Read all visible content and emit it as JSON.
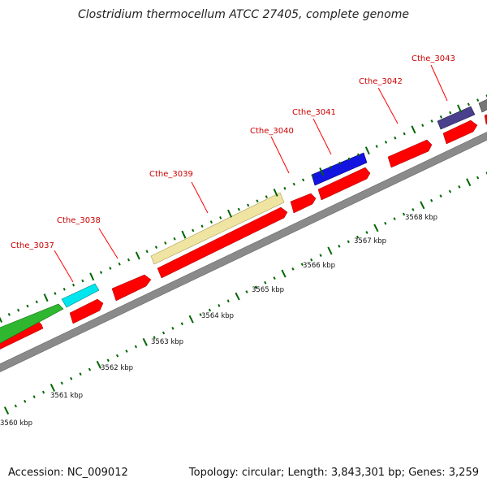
{
  "title": "Clostridium thermocellum ATCC 27405, complete genome",
  "footer": {
    "accession": "Accession: NC_009012",
    "topology": "Topology: circular;",
    "length": "Length: 3,843,301 bp;",
    "genes": "Genes: 3,259"
  },
  "colors": {
    "cds": "#ff0000",
    "backbone": "#888888",
    "tick": "#006600",
    "label": "#cc0000"
  },
  "kbp_labels": [
    "3560 kbp",
    "3561 kbp",
    "3562 kbp",
    "3563 kbp",
    "3564 kbp",
    "3565 kbp",
    "3566 kbp",
    "3567 kbp",
    "3568 kbp"
  ],
  "gene_labels": [
    "Cthe_3037",
    "Cthe_3038",
    "Cthe_3039",
    "Cthe_3040",
    "Cthe_3041",
    "Cthe_3042",
    "Cthe_3043"
  ],
  "feature_colors": [
    "#2db52d",
    "#00e5ee",
    "#f0e3a0",
    "#1010dd",
    "#4b3f8a",
    "#777777"
  ]
}
